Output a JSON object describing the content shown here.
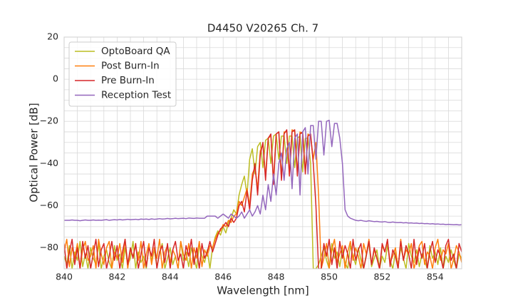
{
  "chart_data": {
    "type": "line",
    "title": "D4450 V20265 Ch. 7",
    "x_label": "Wavelength [nm]",
    "y_label": "Optical Power [dB]",
    "xlim": [
      840,
      855
    ],
    "ylim": [
      -90,
      20
    ],
    "xticks": [
      840,
      842,
      844,
      846,
      848,
      850,
      852,
      854
    ],
    "yticks": [
      -80,
      -60,
      -40,
      -20,
      0,
      20
    ],
    "grid": true,
    "x_grid": [
      840,
      840.5,
      841,
      841.5,
      842,
      842.5,
      843,
      843.5,
      844,
      844.5,
      845,
      845.5,
      846,
      846.5,
      847,
      847.5,
      848,
      848.5,
      849,
      849.5,
      850,
      850.5,
      851,
      851.5,
      852,
      852.5,
      853,
      853.5,
      854,
      854.5,
      855
    ],
    "y_grid": [
      -90,
      -85,
      -80,
      -75,
      -70,
      -65,
      -60,
      -55,
      -50,
      -45,
      -40,
      -35,
      -30,
      -25,
      -20,
      -15,
      -10,
      -5,
      0,
      5,
      10,
      15,
      20
    ],
    "legend": "upper left",
    "x": [
      840,
      840.1,
      840.2,
      840.3,
      840.4,
      840.5,
      840.6,
      840.7,
      840.8,
      840.9,
      841,
      841.1,
      841.2,
      841.3,
      841.4,
      841.5,
      841.6,
      841.7,
      841.8,
      841.9,
      842,
      842.1,
      842.2,
      842.3,
      842.4,
      842.5,
      842.6,
      842.7,
      842.8,
      842.9,
      843,
      843.1,
      843.2,
      843.3,
      843.4,
      843.5,
      843.6,
      843.7,
      843.8,
      843.9,
      844,
      844.1,
      844.2,
      844.3,
      844.4,
      844.5,
      844.6,
      844.7,
      844.8,
      844.9,
      845,
      845.1,
      845.2,
      845.3,
      845.4,
      845.5,
      845.6,
      845.7,
      845.8,
      845.9,
      846,
      846.1,
      846.2,
      846.3,
      846.4,
      846.5,
      846.6,
      846.7,
      846.8,
      846.9,
      847,
      847.1,
      847.2,
      847.3,
      847.4,
      847.5,
      847.6,
      847.7,
      847.8,
      847.9,
      848,
      848.1,
      848.2,
      848.3,
      848.4,
      848.5,
      848.6,
      848.7,
      848.8,
      848.9,
      849,
      849.1,
      849.2,
      849.3,
      849.4,
      849.5,
      849.6,
      849.7,
      849.8,
      849.9,
      850,
      850.1,
      850.2,
      850.3,
      850.4,
      850.5,
      850.6,
      850.7,
      850.8,
      850.9,
      851,
      851.1,
      851.2,
      851.3,
      851.4,
      851.5,
      851.6,
      851.7,
      851.8,
      851.9,
      852,
      852.1,
      852.2,
      852.3,
      852.4,
      852.5,
      852.6,
      852.7,
      852.8,
      852.9,
      853,
      853.1,
      853.2,
      853.3,
      853.4,
      853.5,
      853.6,
      853.7,
      853.8,
      853.9,
      854,
      854.1,
      854.2,
      854.3,
      854.4,
      854.5,
      854.6,
      854.7,
      854.8,
      854.9,
      855
    ],
    "series": [
      {
        "name": "OptoBoard QA",
        "color": "#bcbd22",
        "values": [
          -84,
          -88,
          -79,
          -90,
          -82,
          -86,
          -77,
          -89,
          -83,
          -90,
          -80,
          -85,
          -88,
          -78,
          -90,
          -84,
          -81,
          -87,
          -90,
          -79,
          -86,
          -83,
          -90,
          -80,
          -88,
          -85,
          -77,
          -90,
          -82,
          -87,
          -84,
          -90,
          -79,
          -86,
          -81,
          -89,
          -83,
          -78,
          -90,
          -85,
          -80,
          -88,
          -84,
          -90,
          -77,
          -86,
          -82,
          -89,
          -80,
          -85,
          -90,
          -78,
          -84,
          -87,
          -81,
          -90,
          -80,
          -75,
          -72,
          -74,
          -70,
          -73,
          -68,
          -66,
          -62,
          -64,
          -55,
          -50,
          -46,
          -55,
          -38,
          -33,
          -45,
          -32,
          -30,
          -42,
          -29,
          -28,
          -40,
          -27,
          -26,
          -38,
          -27,
          -27,
          -40,
          -27,
          -27,
          -42,
          -28,
          -27,
          -44,
          -28,
          -28,
          -40,
          -90,
          -90,
          -88,
          -84,
          -80,
          -86,
          -90,
          -78,
          -85,
          -82,
          -89,
          -81,
          -87,
          -90,
          -79,
          -84,
          -88,
          -80,
          -86,
          -90,
          -83,
          -78,
          -89,
          -85,
          -81,
          -90,
          -84,
          -87,
          -79,
          -86,
          -90,
          -82,
          -88,
          -80,
          -85,
          -90,
          -78,
          -84,
          -87,
          -81,
          -89,
          -83,
          -86,
          -90,
          -79,
          -85,
          -82,
          -88,
          -80,
          -90,
          -84,
          -87,
          -81,
          -86,
          -90,
          -83,
          -85
        ]
      },
      {
        "name": "Post Burn-In",
        "color": "#ff7f0e",
        "values": [
          -82,
          -76,
          -89,
          -80,
          -85,
          -78,
          -90,
          -81,
          -77,
          -86,
          -84,
          -79,
          -90,
          -76,
          -83,
          -88,
          -80,
          -77,
          -90,
          -82,
          -85,
          -78,
          -87,
          -76,
          -90,
          -81,
          -84,
          -79,
          -86,
          -77,
          -90,
          -83,
          -78,
          -88,
          -80,
          -85,
          -76,
          -90,
          -82,
          -79,
          -87,
          -81,
          -84,
          -90,
          -77,
          -83,
          -86,
          -78,
          -90,
          -80,
          -85,
          -77,
          -89,
          -81,
          -84,
          -79,
          -80,
          -76,
          -73,
          -72,
          -69,
          -70,
          -67,
          -68,
          -65,
          -64,
          -58,
          -60,
          -56,
          -52,
          -60,
          -45,
          -42,
          -52,
          -34,
          -31,
          -46,
          -28,
          -27,
          -48,
          -26,
          -25,
          -47,
          -25,
          -25,
          -45,
          -24,
          -25,
          -44,
          -25,
          -26,
          -44,
          -26,
          -27,
          -38,
          -30,
          -55,
          -90,
          -85,
          -78,
          -90,
          -81,
          -76,
          -87,
          -83,
          -79,
          -90,
          -82,
          -77,
          -86,
          -80,
          -84,
          -90,
          -78,
          -83,
          -76,
          -88,
          -81,
          -85,
          -90,
          -79,
          -82,
          -77,
          -87,
          -84,
          -80,
          -90,
          -76,
          -86,
          -81,
          -83,
          -78,
          -90,
          -85,
          -79,
          -77,
          -88,
          -82,
          -84,
          -90,
          -80,
          -76,
          -86,
          -81,
          -83,
          -78,
          -90,
          -85,
          -79,
          -82,
          -87
        ]
      },
      {
        "name": "Pre Burn-In",
        "color": "#d62728",
        "values": [
          -78,
          -90,
          -82,
          -76,
          -88,
          -80,
          -90,
          -77,
          -85,
          -79,
          -90,
          -83,
          -76,
          -89,
          -81,
          -78,
          -90,
          -84,
          -77,
          -86,
          -79,
          -90,
          -82,
          -76,
          -88,
          -80,
          -85,
          -78,
          -90,
          -83,
          -77,
          -89,
          -80,
          -84,
          -76,
          -90,
          -82,
          -79,
          -87,
          -78,
          -90,
          -81,
          -77,
          -86,
          -83,
          -90,
          -79,
          -84,
          -76,
          -88,
          -80,
          -90,
          -78,
          -85,
          -82,
          -77,
          -82,
          -78,
          -74,
          -71,
          -70,
          -68,
          -70,
          -66,
          -68,
          -66,
          -60,
          -58,
          -63,
          -53,
          -62,
          -48,
          -40,
          -55,
          -36,
          -30,
          -48,
          -28,
          -26,
          -50,
          -26,
          -25,
          -48,
          -26,
          -24,
          -46,
          -25,
          -24,
          -46,
          -26,
          -25,
          -45,
          -27,
          -26,
          -40,
          -60,
          -90,
          -90,
          -78,
          -84,
          -76,
          -88,
          -80,
          -90,
          -77,
          -85,
          -79,
          -83,
          -90,
          -76,
          -86,
          -81,
          -78,
          -90,
          -84,
          -77,
          -88,
          -80,
          -85,
          -90,
          -78,
          -82,
          -76,
          -89,
          -81,
          -84,
          -90,
          -77,
          -86,
          -79,
          -83,
          -90,
          -76,
          -88,
          -80,
          -85,
          -78,
          -90,
          -82,
          -77,
          -87,
          -81,
          -84,
          -90,
          -79,
          -76,
          -86,
          -83,
          -90,
          -78,
          -82
        ]
      },
      {
        "name": "Reception Test",
        "color": "#9467bd",
        "values": [
          -67,
          -67,
          -67,
          -66.8,
          -67,
          -67,
          -67.2,
          -67,
          -66.8,
          -67,
          -67,
          -66.8,
          -67,
          -66.9,
          -67,
          -66.8,
          -66.7,
          -67,
          -66.8,
          -66.7,
          -66.8,
          -66.6,
          -66.8,
          -66.7,
          -66.5,
          -66.7,
          -66.6,
          -66.5,
          -66.7,
          -66.4,
          -66.5,
          -66.4,
          -66.6,
          -66.3,
          -66.5,
          -66.4,
          -66.2,
          -66.4,
          -66.3,
          -66.1,
          -66.3,
          -66.2,
          -66,
          -66.2,
          -66.1,
          -66,
          -66.2,
          -65.9,
          -66,
          -66.1,
          -65.9,
          -66,
          -66,
          -66,
          -65,
          -65,
          -65,
          -65,
          -66,
          -65,
          -64,
          -65,
          -66,
          -64,
          -65,
          -66,
          -65,
          -63,
          -66,
          -64,
          -62,
          -65,
          -63,
          -60,
          -64,
          -55,
          -62,
          -50,
          -58,
          -45,
          -55,
          -40,
          -35,
          -48,
          -33,
          -30,
          -52,
          -28,
          -26,
          -55,
          -25,
          -23,
          -45,
          -22,
          -22,
          -38,
          -20,
          -20,
          -36,
          -20,
          -19.5,
          -32,
          -21,
          -21,
          -28,
          -40,
          -62,
          -65,
          -66,
          -66.5,
          -67,
          -67.2,
          -67,
          -67.3,
          -67.5,
          -67.2,
          -67.4,
          -67.6,
          -67.5,
          -67.7,
          -67.8,
          -67.6,
          -67.9,
          -68,
          -67.8,
          -68,
          -68.1,
          -68,
          -68.2,
          -68.1,
          -68.3,
          -68.2,
          -68.4,
          -68.3,
          -68.5,
          -68.4,
          -68.6,
          -68.5,
          -68.7,
          -68.6,
          -68.8,
          -68.7,
          -68.9,
          -68.8,
          -69,
          -68.9,
          -69,
          -69.1,
          -69,
          -69.2,
          -69.1
        ]
      }
    ]
  }
}
